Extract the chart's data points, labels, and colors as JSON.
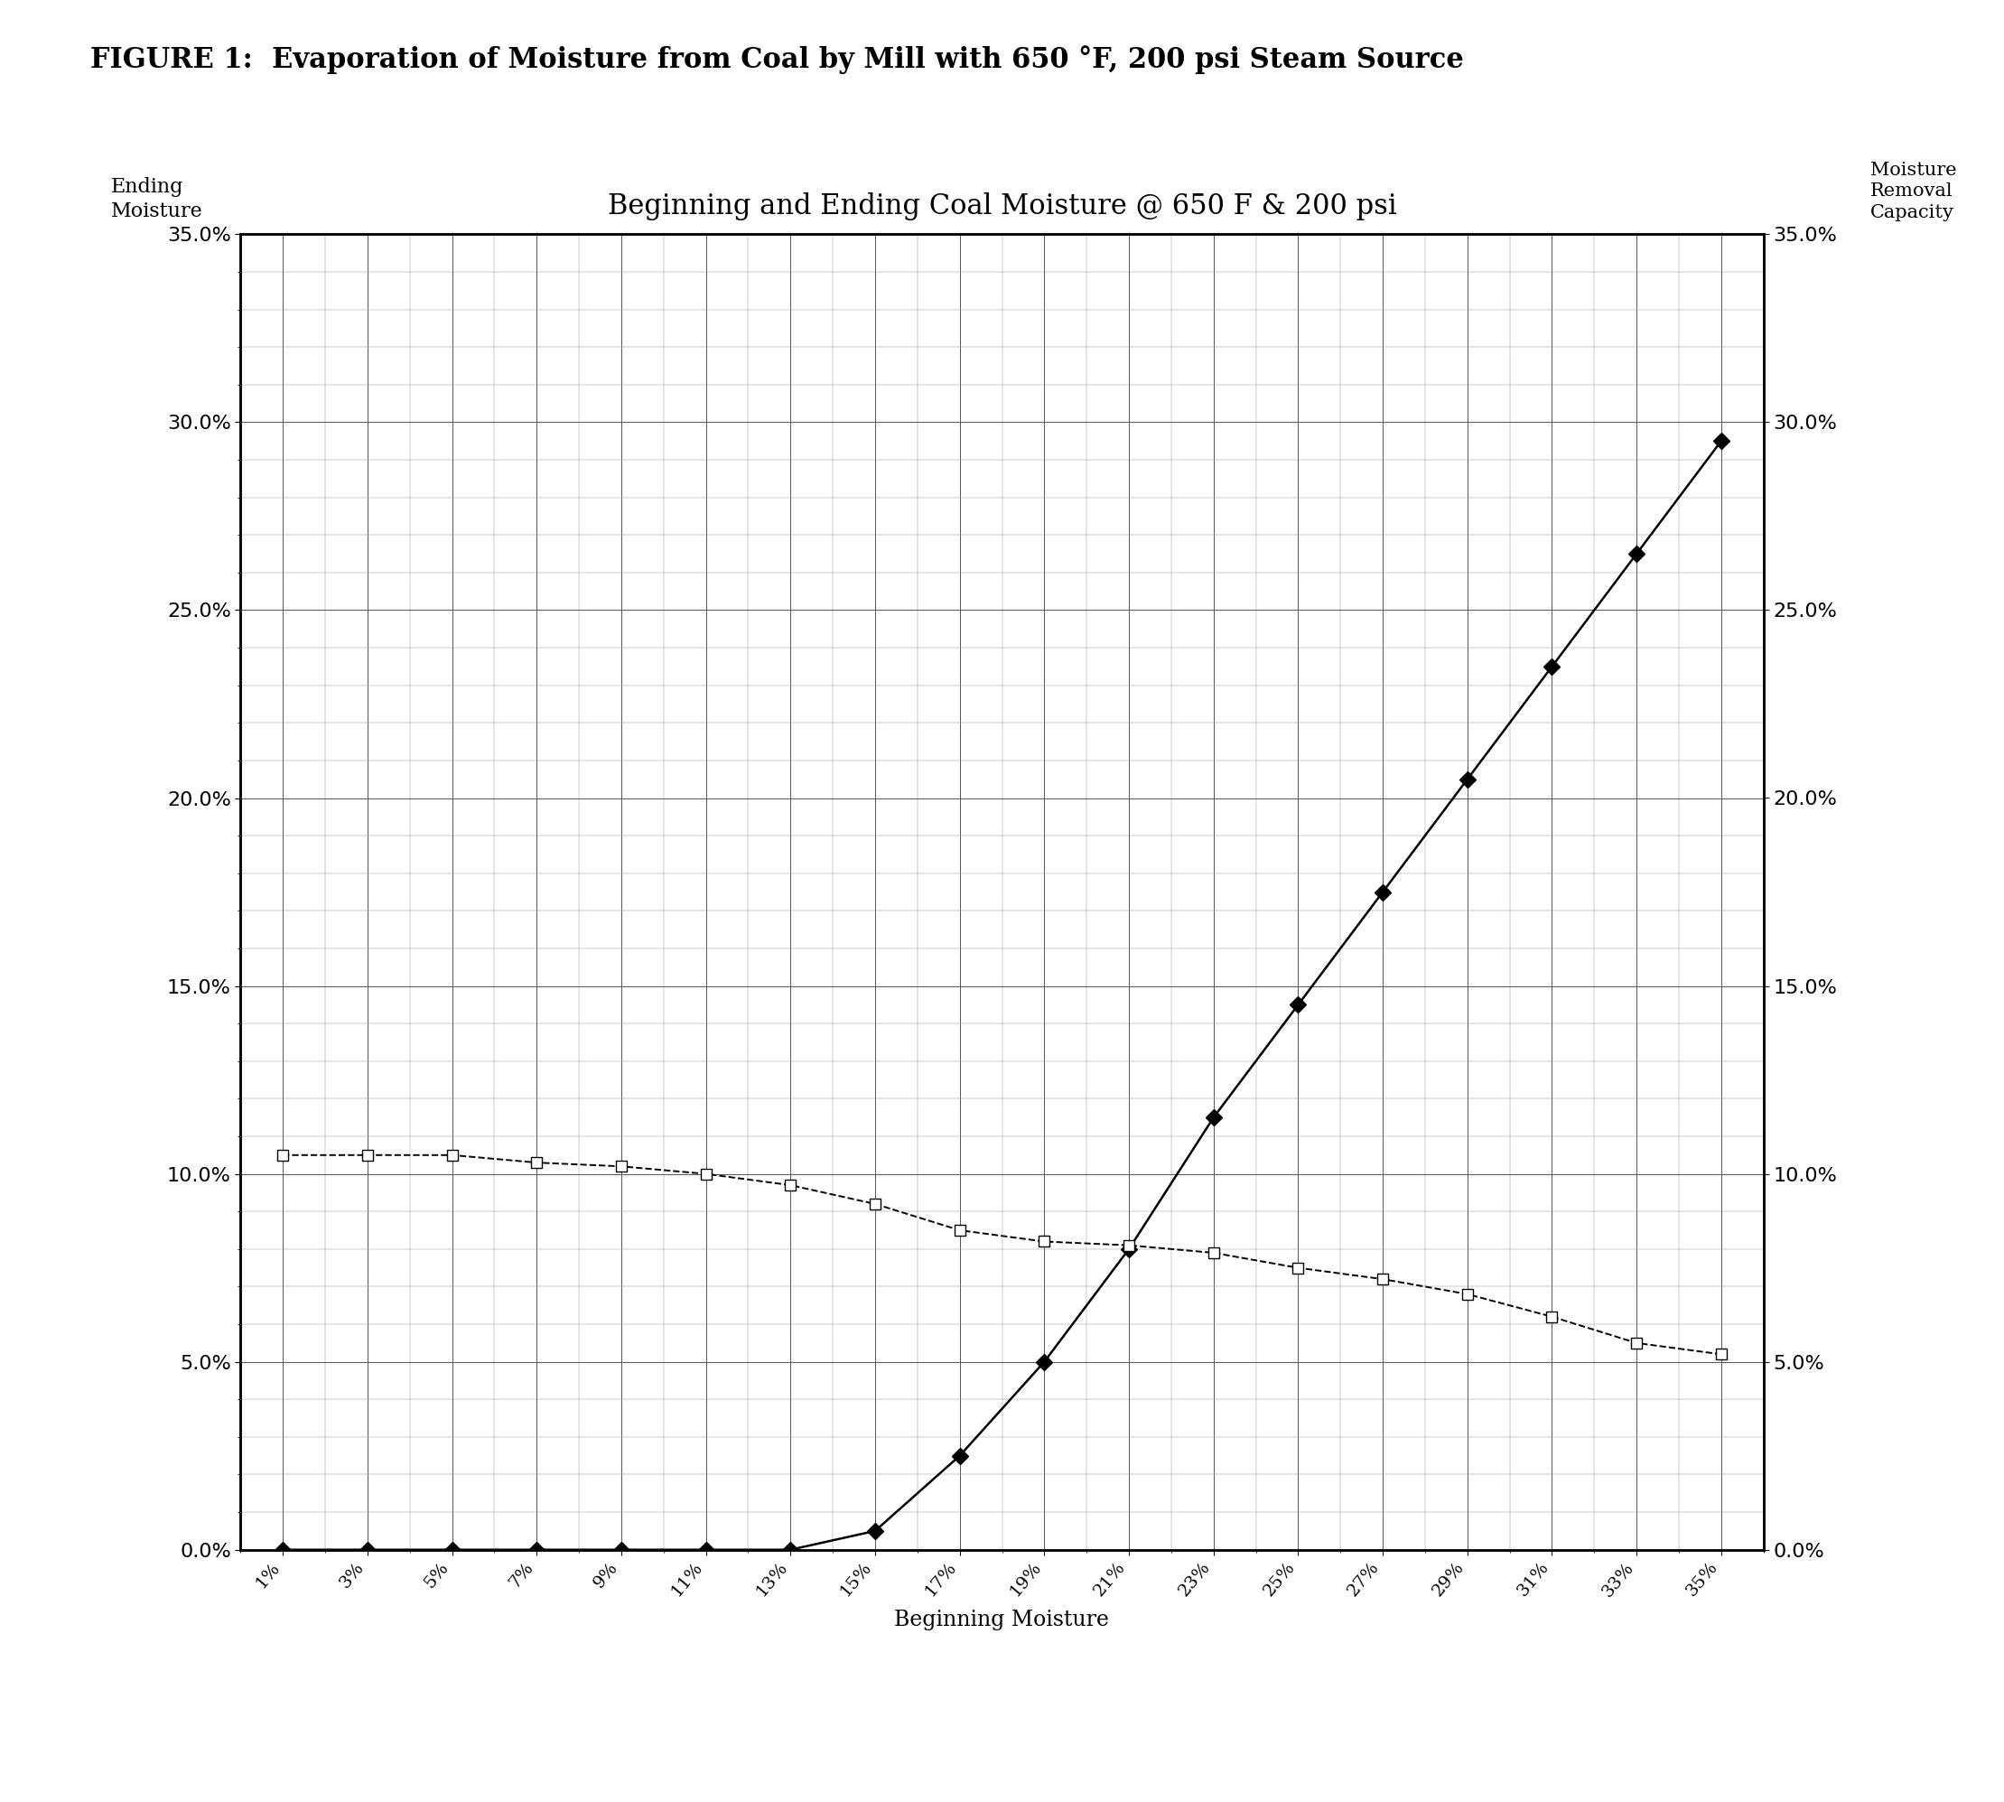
{
  "title_above": "FIGURE 1:  Evaporation of Moisture from Coal by Mill with 650 °F, 200 psi Steam Source",
  "chart_title": "Beginning and Ending Coal Moisture @ 650 F & 200 psi",
  "xlabel": "Beginning Moisture",
  "ylabel_left": "Ending\nMoisture",
  "ylabel_right": "Moisture\nRemoval\nCapacity",
  "x_labels": [
    "1%",
    "3%",
    "5%",
    "7%",
    "9%",
    "11%",
    "13%",
    "15%",
    "17%",
    "19%",
    "21%",
    "23%",
    "25%",
    "27%",
    "29%",
    "31%",
    "33%",
    "35%"
  ],
  "x_values": [
    1,
    3,
    5,
    7,
    9,
    11,
    13,
    15,
    17,
    19,
    21,
    23,
    25,
    27,
    29,
    31,
    33,
    35
  ],
  "ending_moisture": [
    0.0,
    0.0,
    0.0,
    0.0,
    0.0,
    0.0,
    0.0,
    0.5,
    2.5,
    5.0,
    8.0,
    11.5,
    14.5,
    17.5,
    20.5,
    23.5,
    26.5,
    29.5
  ],
  "lbs_moisture_evap": [
    10.5,
    10.5,
    10.5,
    10.3,
    10.2,
    10.0,
    9.7,
    9.2,
    8.5,
    8.2,
    8.1,
    7.9,
    7.5,
    7.2,
    6.8,
    6.2,
    5.5,
    5.2
  ],
  "ylim": [
    0,
    35
  ],
  "yticks": [
    0,
    5,
    10,
    15,
    20,
    25,
    30,
    35
  ],
  "background_color": "#ffffff",
  "fig_width": 22.19,
  "fig_height": 19.95
}
